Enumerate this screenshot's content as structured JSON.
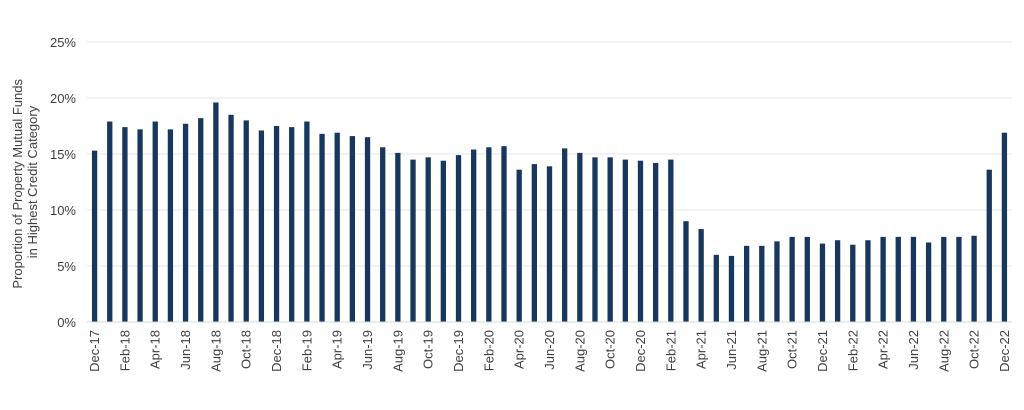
{
  "chart_data": {
    "type": "bar",
    "ylabel_line1": "Proportion of Property Mutual Funds",
    "ylabel_line2": "in Highest Credit Category",
    "xlabel": "",
    "ylim": [
      0,
      25
    ],
    "yticks": [
      "0%",
      "5%",
      "10%",
      "15%",
      "20%",
      "25%"
    ],
    "grid": true,
    "bar_color": "#17375e",
    "categories": [
      "Dec-17",
      "Jan-18",
      "Feb-18",
      "Mar-18",
      "Apr-18",
      "May-18",
      "Jun-18",
      "Jul-18",
      "Aug-18",
      "Sep-18",
      "Oct-18",
      "Nov-18",
      "Dec-18",
      "Jan-19",
      "Feb-19",
      "Mar-19",
      "Apr-19",
      "May-19",
      "Jun-19",
      "Jul-19",
      "Aug-19",
      "Sep-19",
      "Oct-19",
      "Nov-19",
      "Dec-19",
      "Jan-20",
      "Feb-20",
      "Mar-20",
      "Apr-20",
      "May-20",
      "Jun-20",
      "Jul-20",
      "Aug-20",
      "Sep-20",
      "Oct-20",
      "Nov-20",
      "Dec-20",
      "Jan-21",
      "Feb-21",
      "Mar-21",
      "Apr-21",
      "May-21",
      "Jun-21",
      "Jul-21",
      "Aug-21",
      "Sep-21",
      "Oct-21",
      "Nov-21",
      "Dec-21",
      "Jan-22",
      "Feb-22",
      "Mar-22",
      "Apr-22",
      "May-22",
      "Jun-22",
      "Jul-22",
      "Aug-22",
      "Sep-22",
      "Oct-22",
      "Nov-22",
      "Dec-22"
    ],
    "xtick_labels": [
      "Dec-17",
      "Feb-18",
      "Apr-18",
      "Jun-18",
      "Aug-18",
      "Oct-18",
      "Dec-18",
      "Feb-19",
      "Apr-19",
      "Jun-19",
      "Aug-19",
      "Oct-19",
      "Dec-19",
      "Feb-20",
      "Apr-20",
      "Jun-20",
      "Aug-20",
      "Oct-20",
      "Dec-20",
      "Feb-21",
      "Apr-21",
      "Jun-21",
      "Aug-21",
      "Oct-21",
      "Dec-21",
      "Feb-22",
      "Apr-22",
      "Jun-22",
      "Aug-22",
      "Oct-22",
      "Dec-22"
    ],
    "values": [
      15.3,
      17.9,
      17.4,
      17.2,
      17.9,
      17.2,
      17.7,
      18.2,
      19.6,
      18.5,
      18.0,
      17.1,
      17.5,
      17.4,
      17.9,
      16.8,
      16.9,
      16.6,
      16.5,
      15.6,
      15.1,
      14.5,
      14.7,
      14.4,
      14.9,
      15.4,
      15.6,
      15.7,
      13.6,
      14.1,
      13.9,
      15.5,
      15.1,
      14.7,
      14.7,
      14.5,
      14.4,
      14.2,
      14.5,
      9.0,
      8.3,
      6.0,
      5.9,
      6.8,
      6.8,
      7.2,
      7.6,
      7.6,
      7.0,
      7.3,
      6.9,
      7.3,
      7.6,
      7.6,
      7.6,
      7.1,
      7.6,
      7.6,
      7.7,
      13.6,
      16.9
    ]
  }
}
